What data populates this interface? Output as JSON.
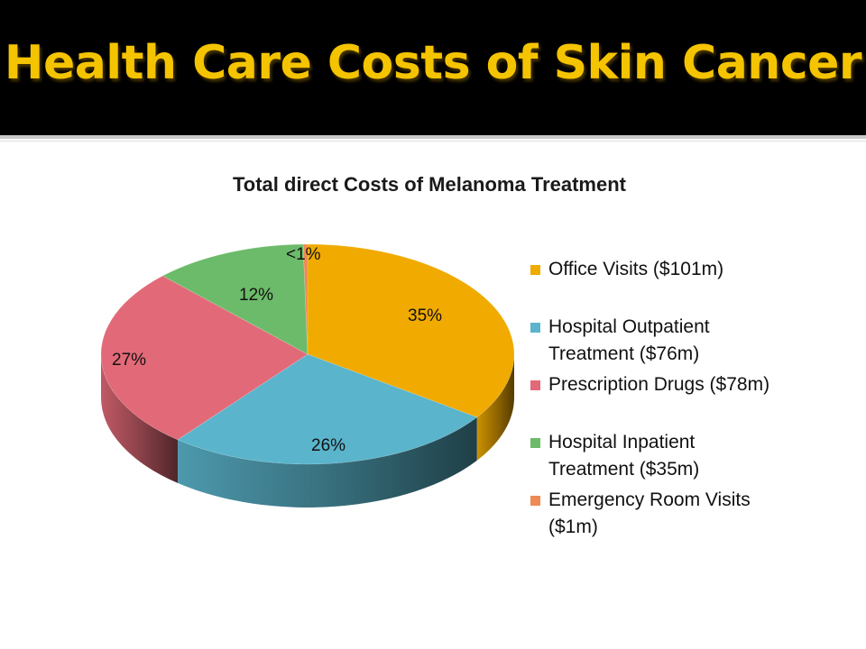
{
  "slide": {
    "title": "Health Care Costs of Skin Cancer"
  },
  "chart_data": {
    "type": "pie",
    "title": "Total direct Costs of Melanoma Treatment",
    "three_d": true,
    "legend_position": "right",
    "categories": [
      "Office Visits ($101m)",
      "Hospital Outpatient Treatment ($76m)",
      "Prescription Drugs ($78m)",
      "Hospital Inpatient Treatment ($35m)",
      "Emergency Room Visits ($1m)"
    ],
    "values": [
      101,
      76,
      78,
      35,
      1
    ],
    "data_labels": [
      "35%",
      "26%",
      "27%",
      "12%",
      "<1%"
    ],
    "colors": [
      "#f0aa00",
      "#5ab4cc",
      "#e26a78",
      "#6cbb6a",
      "#ee8a54"
    ]
  }
}
